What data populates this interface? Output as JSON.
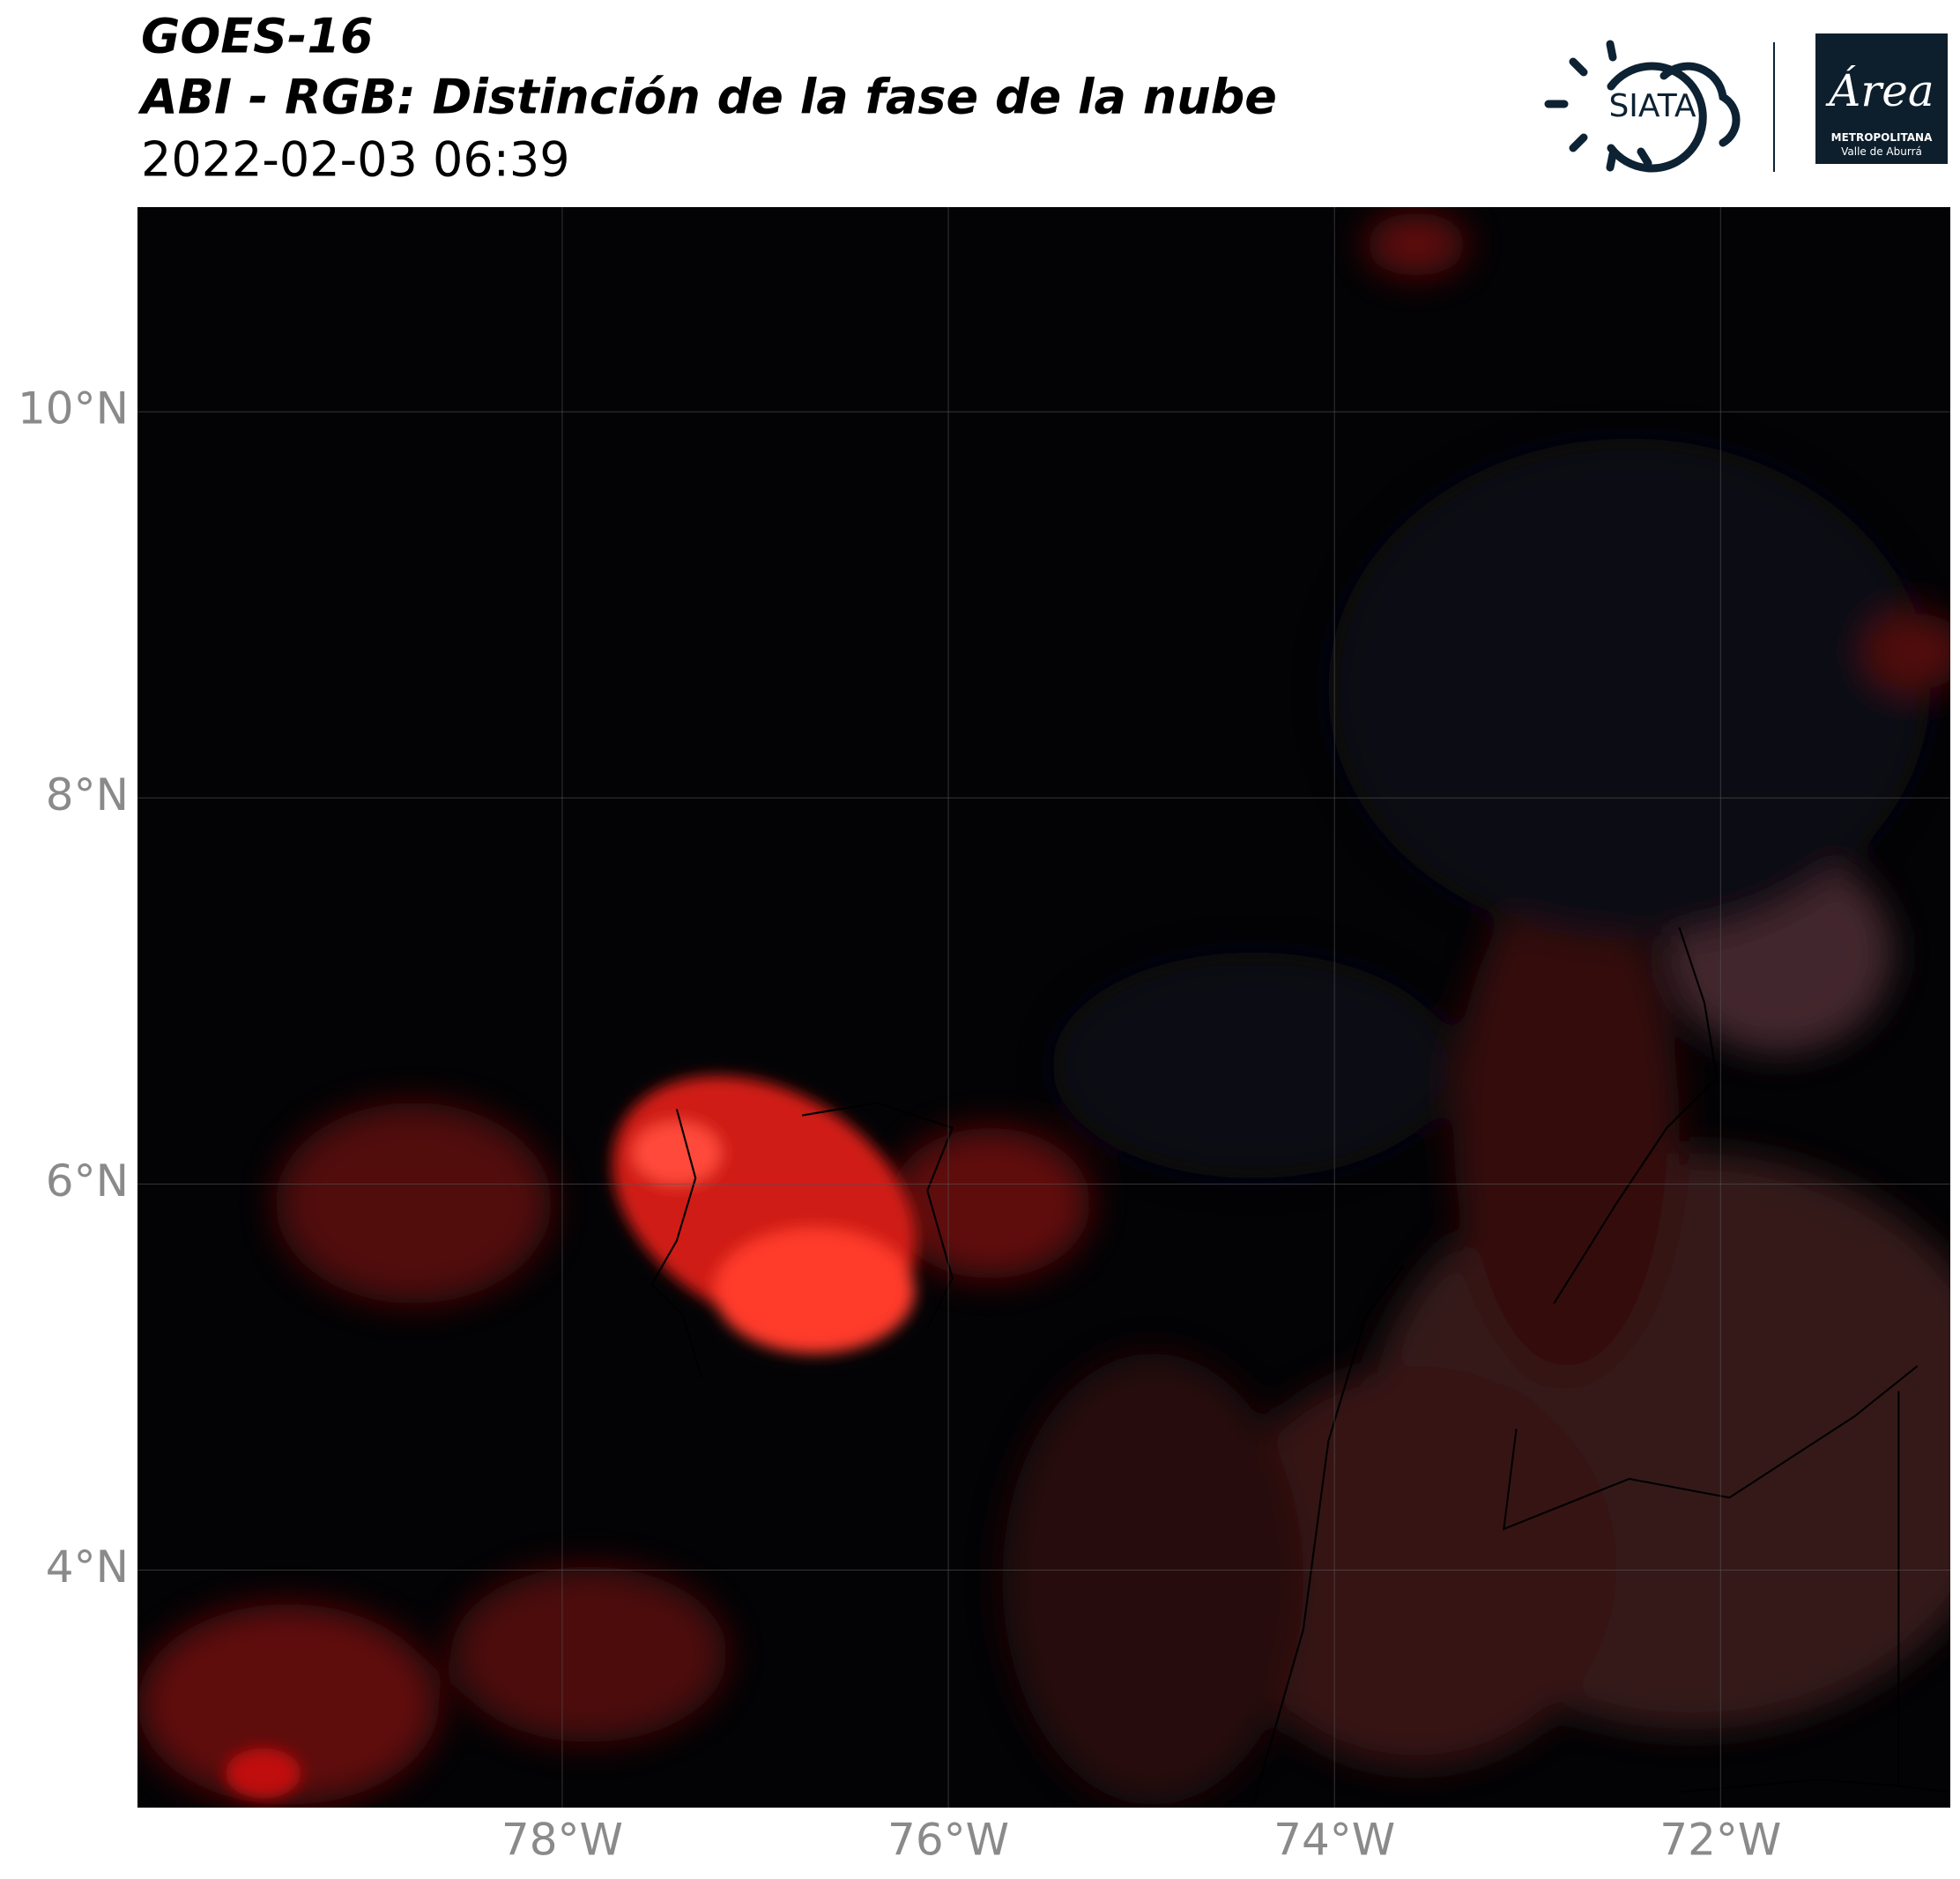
{
  "header": {
    "title": "GOES-16",
    "subtitle": "ABI - RGB: Distinción de la fase de la nube",
    "datetime": "2022-02-03 06:39"
  },
  "logos": {
    "siata": "SIATA",
    "area": "Área",
    "metropolitana": "METROPOLITANA",
    "valle": "Valle de Aburrá"
  },
  "map": {
    "xlim": [
      -80.2,
      -70.81
    ],
    "ylim": [
      2.77,
      11.06
    ],
    "xticks": [
      {
        "value": -78,
        "label": "78°W"
      },
      {
        "value": -76,
        "label": "76°W"
      },
      {
        "value": -74,
        "label": "74°W"
      },
      {
        "value": -72,
        "label": "72°W"
      }
    ],
    "yticks": [
      {
        "value": 10,
        "label": "10°N"
      },
      {
        "value": 8,
        "label": "8°N"
      },
      {
        "value": 6,
        "label": "6°N"
      },
      {
        "value": 4,
        "label": "4°N"
      }
    ],
    "grid": true
  }
}
